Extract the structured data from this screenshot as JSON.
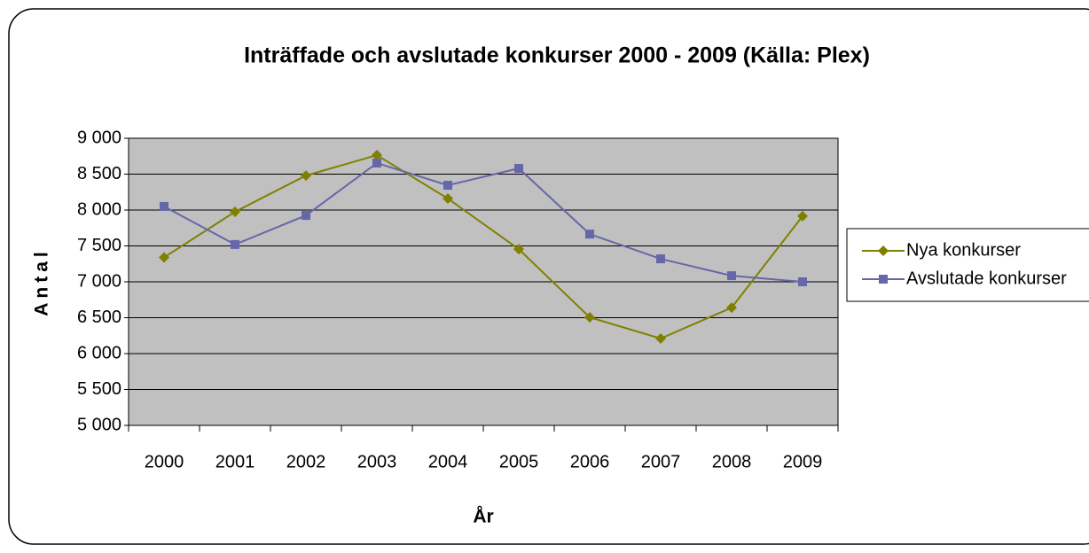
{
  "chart_data": {
    "type": "line",
    "title": "Inträffade och avslutade konkurser 2000 - 2009 (Källa: Plex)",
    "xlabel": "År",
    "ylabel": "Antal",
    "categories": [
      "2000",
      "2001",
      "2002",
      "2003",
      "2004",
      "2005",
      "2006",
      "2007",
      "2008",
      "2009"
    ],
    "series": [
      {
        "name": "Nya konkurser",
        "color": "#808000",
        "marker": "diamond",
        "values": [
          7340,
          7975,
          8480,
          8765,
          8160,
          7455,
          6505,
          6210,
          6640,
          7915
        ]
      },
      {
        "name": "Avslutade konkurser",
        "color": "#6666aa",
        "marker": "square",
        "values": [
          8050,
          7520,
          7925,
          8655,
          8345,
          8580,
          7665,
          7320,
          7085,
          7000
        ]
      }
    ],
    "ylim": [
      5000,
      9000
    ],
    "yticks": [
      {
        "value": 5000,
        "label": "5 000"
      },
      {
        "value": 5500,
        "label": "5 500"
      },
      {
        "value": 6000,
        "label": "6 000"
      },
      {
        "value": 6500,
        "label": "6 500"
      },
      {
        "value": 7000,
        "label": "7 000"
      },
      {
        "value": 7500,
        "label": "7 500"
      },
      {
        "value": 8000,
        "label": "8 000"
      },
      {
        "value": 8500,
        "label": "8 500"
      },
      {
        "value": 9000,
        "label": "9 000"
      }
    ],
    "grid": true,
    "legend": "right",
    "plot_background": "#c0c0c0"
  }
}
